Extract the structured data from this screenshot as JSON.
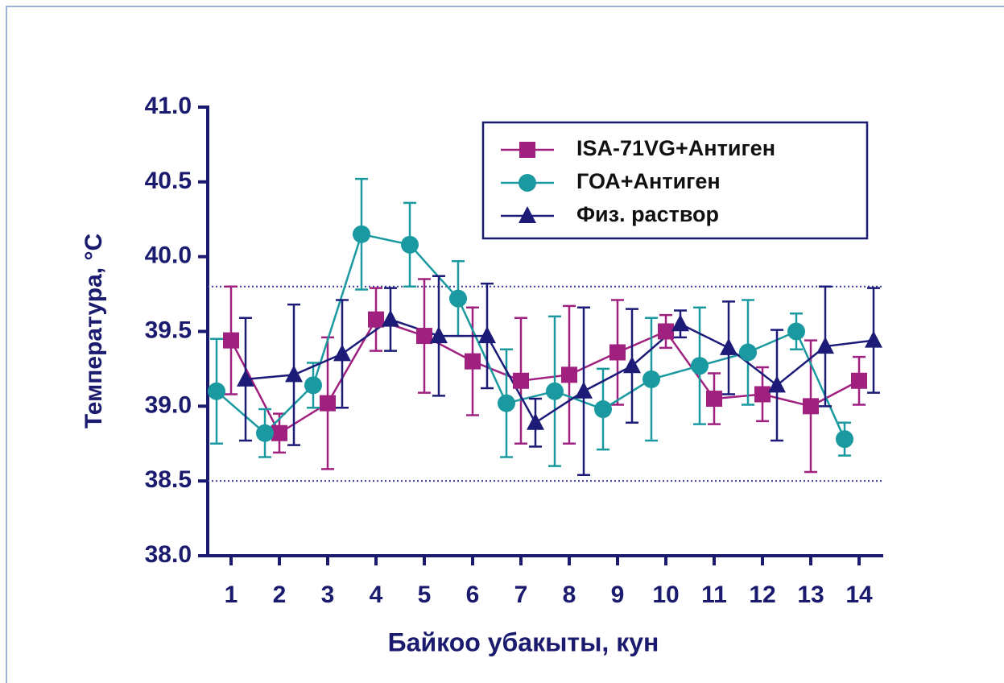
{
  "chart_data": {
    "type": "line",
    "xlabel": "Байкоо убакыты, кун",
    "ylabel": "Температура, °C",
    "categories": [
      "1",
      "2",
      "3",
      "4",
      "5",
      "6",
      "7",
      "8",
      "9",
      "10",
      "11",
      "12",
      "13",
      "14"
    ],
    "ylim": [
      38,
      41
    ],
    "yticks": [
      {
        "value": 38,
        "label": "38.0"
      },
      38.5,
      {
        "value": 39,
        "label": "39.0"
      },
      39.5,
      {
        "value": 40,
        "label": "40.0"
      },
      40.5,
      {
        "value": 41,
        "label": "41.0"
      }
    ],
    "reference_lines": [
      39.8,
      38.5
    ],
    "legend": "upper right",
    "series": [
      {
        "name": "ISA-71VG+Антиген",
        "color": "#a0207f",
        "marker": "square",
        "values": [
          39.44,
          38.82,
          39.02,
          39.58,
          39.47,
          39.3,
          39.17,
          39.21,
          39.36,
          39.5,
          39.05,
          39.08,
          39.0,
          39.17
        ],
        "errors": [
          0.36,
          0.13,
          0.44,
          0.21,
          0.38,
          0.36,
          0.42,
          0.46,
          0.35,
          0.11,
          0.17,
          0.18,
          0.44,
          0.16
        ]
      },
      {
        "name": "ГОА+Антиген",
        "color": "#1a9aa0",
        "marker": "circle",
        "values": [
          39.1,
          38.82,
          39.14,
          40.15,
          40.08,
          39.72,
          39.02,
          39.1,
          38.98,
          39.18,
          39.27,
          39.36,
          39.5,
          38.78
        ],
        "errors": [
          0.35,
          0.16,
          0.15,
          0.37,
          0.28,
          0.25,
          0.36,
          0.5,
          0.27,
          0.41,
          0.39,
          0.35,
          0.12,
          0.11
        ]
      },
      {
        "name": "Физ. раствор",
        "color": "#1c1c78",
        "marker": "triangle",
        "values": [
          39.18,
          39.21,
          39.35,
          39.58,
          39.47,
          39.47,
          38.89,
          39.1,
          39.27,
          39.55,
          39.39,
          39.14,
          39.4,
          39.44
        ],
        "errors": [
          0.41,
          0.47,
          0.36,
          0.21,
          0.4,
          0.35,
          0.16,
          0.56,
          0.38,
          0.09,
          0.31,
          0.37,
          0.4,
          0.35
        ]
      }
    ]
  }
}
